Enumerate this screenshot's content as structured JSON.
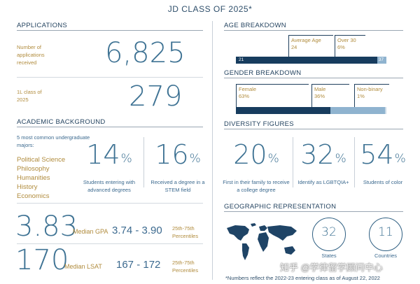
{
  "title": "JD CLASS OF 2025*",
  "applications": {
    "heading": "APPLICATIONS",
    "received_label": "Number of applications received",
    "received_value": "6,825",
    "class_label": "1L class of 2025",
    "class_value": "279"
  },
  "academic": {
    "heading": "ACADEMIC BACKGROUND",
    "majors_label": "5 most common undergraduate majors:",
    "majors": [
      "Political Science",
      "Philosophy",
      "Humanities",
      "History",
      "Economics"
    ],
    "stat1_value": "14",
    "stat1_unit": "%",
    "stat1_label": "Students entering with advanced degrees",
    "stat2_value": "16",
    "stat2_unit": "%",
    "stat2_label": "Received a degree in a STEM field"
  },
  "gpa": {
    "value": "3.83",
    "label": "Median GPA",
    "range": "3.74 - 3.90",
    "range_label": "25th-75th Percentiles"
  },
  "lsat": {
    "value": "170",
    "label": "Median LSAT",
    "range": "167 - 172",
    "range_label": "25th-75th Percentiles"
  },
  "age": {
    "heading": "AGE BREAKDOWN",
    "min_label": "21",
    "max_label": "37",
    "avg_label": "Average Age",
    "avg_value": "24",
    "over30_label": "Over 30",
    "over30_value": "6%",
    "over30_fraction": 0.06
  },
  "gender": {
    "heading": "GENDER BREAKDOWN",
    "female_label": "Female",
    "female_value": "63%",
    "female_fraction": 0.63,
    "male_label": "Male",
    "male_value": "36%",
    "male_fraction": 0.36,
    "nonbinary_label": "Non-binary",
    "nonbinary_value": "1%",
    "nonbinary_fraction": 0.01
  },
  "diversity": {
    "heading": "DIVERSITY FIGURES",
    "stat1_value": "20",
    "stat1_unit": "%",
    "stat1_label": "First in their family to receive a college degree",
    "stat2_value": "32",
    "stat2_unit": "%",
    "stat2_label": "Identify as LGBTQIA+",
    "stat3_value": "54",
    "stat3_unit": "%",
    "stat3_label": "Students of color"
  },
  "geo": {
    "heading": "GEOGRAPHIC REPRESENTATION",
    "states_value": "32",
    "states_label": "States",
    "countries_value": "11",
    "countries_label": "Countries"
  },
  "footer": "*Numbers reflect the 2022-23 entering class as of August 22, 2022",
  "watermark": "知乎 @学律留学顾问中心",
  "colors": {
    "dark_blue": "#173c5e",
    "light_blue": "#8fb3cf",
    "gold": "#b08b3c",
    "number_blue": "#3f7394"
  }
}
